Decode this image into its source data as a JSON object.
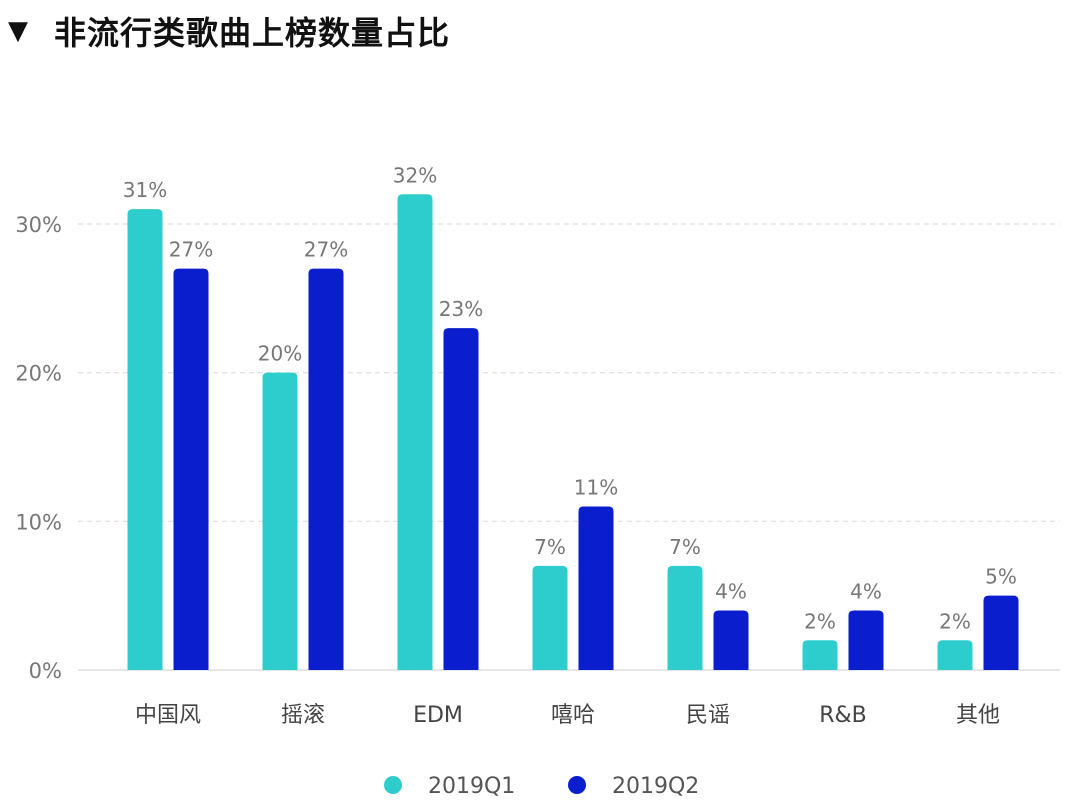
{
  "title": "非流行类歌曲上榜数量占比",
  "title_icon": "triangle-down-icon",
  "chart_data": {
    "type": "bar",
    "title": "非流行类歌曲上榜数量占比",
    "xlabel": "",
    "ylabel": "",
    "ylim": [
      0,
      30
    ],
    "yticks": [
      "0%",
      "10%",
      "20%",
      "30%"
    ],
    "ytick_values": [
      0,
      10,
      20,
      30
    ],
    "grid": true,
    "legend_position": "bottom-center",
    "categories": [
      "中国风",
      "摇滚",
      "EDM",
      "嘻哈",
      "民谣",
      "R&B",
      "其他"
    ],
    "series": [
      {
        "name": "2019Q1",
        "color": "#2ecdcd",
        "values": [
          31,
          20,
          32,
          7,
          7,
          2,
          2
        ],
        "labels": [
          "31%",
          "20%",
          "32%",
          "7%",
          "7%",
          "2%",
          "2%"
        ]
      },
      {
        "name": "2019Q2",
        "color": "#0b1ecd",
        "values": [
          27,
          27,
          23,
          11,
          4,
          4,
          5
        ],
        "labels": [
          "27%",
          "27%",
          "23%",
          "11%",
          "4%",
          "4%",
          "5%"
        ]
      }
    ]
  }
}
